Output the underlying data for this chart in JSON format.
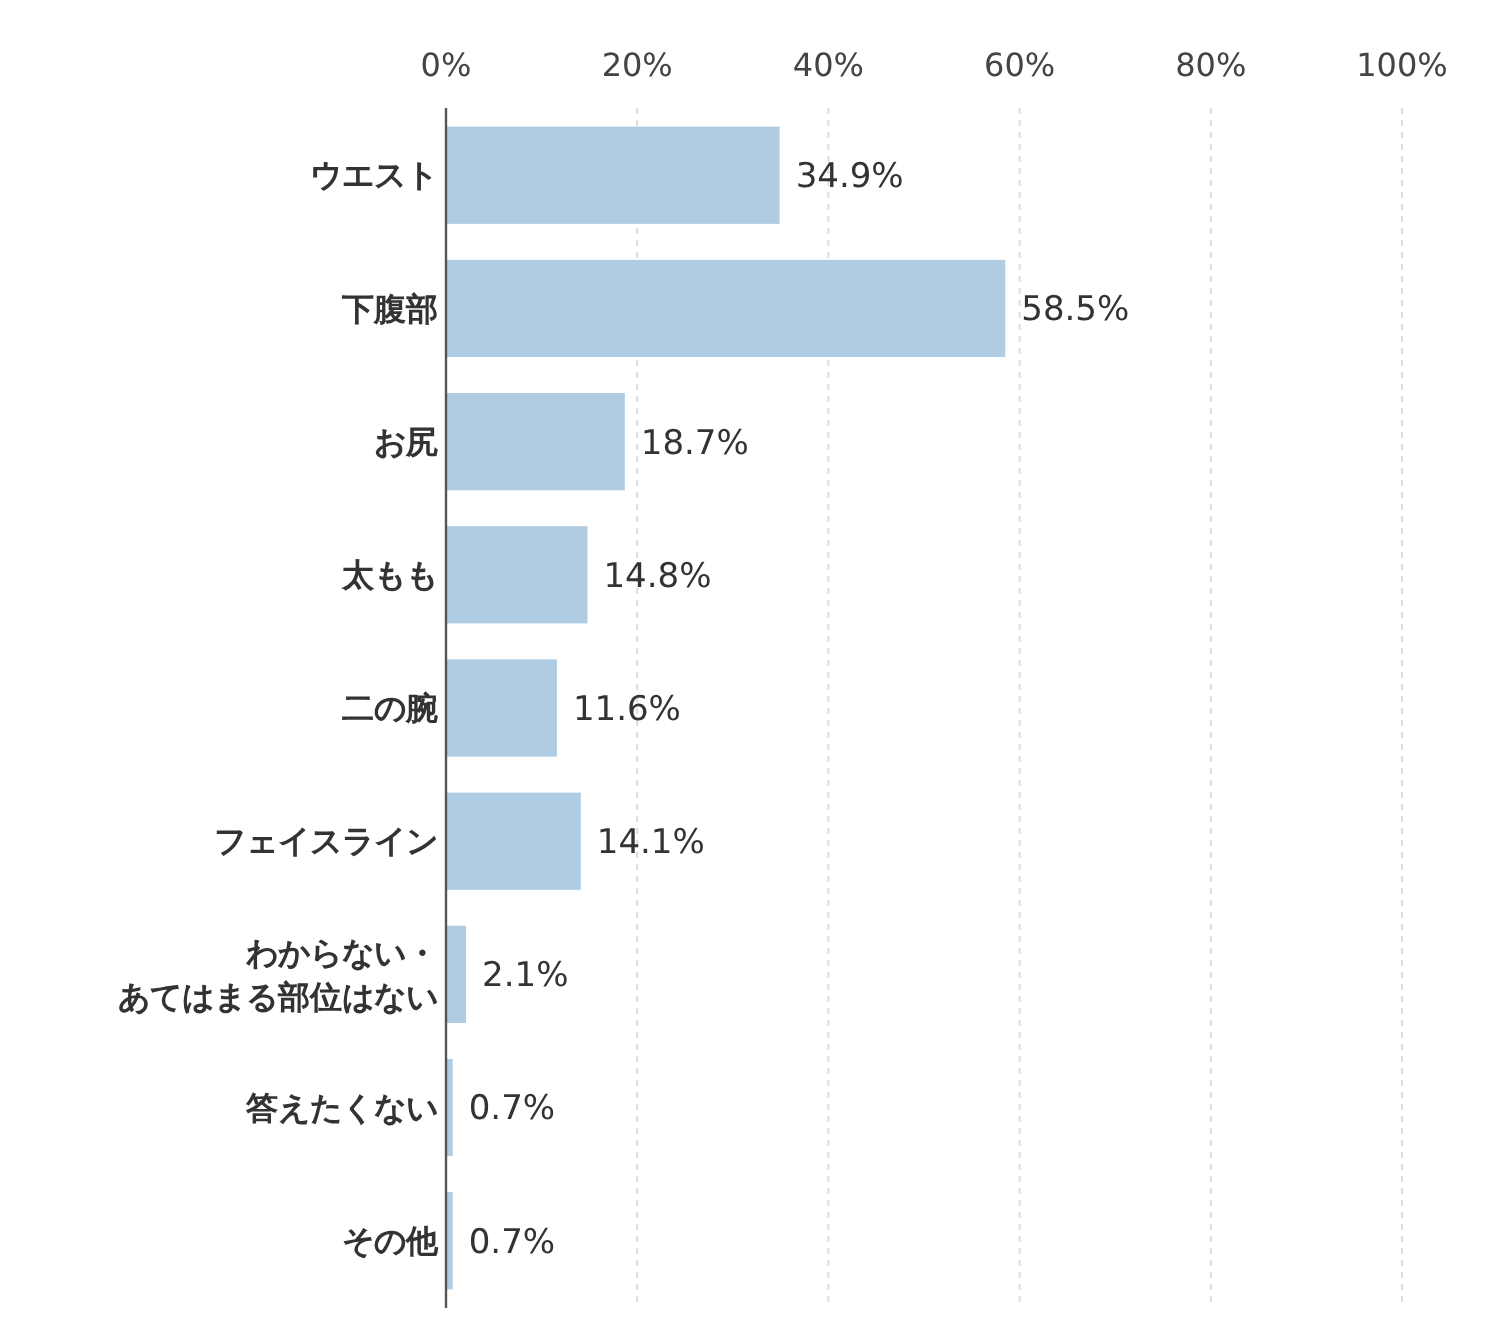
{
  "chart_data": {
    "type": "bar",
    "orientation": "horizontal",
    "categories": [
      "ウエスト",
      "下腹部",
      "お尻",
      "太もも",
      "二の腕",
      "フェイスライン",
      "わからない・あてはまる部位はない",
      "答えたくない",
      "その他"
    ],
    "values": [
      34.9,
      58.5,
      18.7,
      14.8,
      11.6,
      14.1,
      2.1,
      0.7,
      0.7
    ],
    "value_labels": [
      "34.9%",
      "58.5%",
      "18.7%",
      "14.8%",
      "11.6%",
      "14.1%",
      "2.1%",
      "0.7%",
      "0.7%"
    ],
    "color": "#b0cce3",
    "xlim": [
      0,
      100
    ],
    "xticks": [
      {
        "value": 0,
        "label": "0%"
      },
      {
        "value": 20,
        "label": "20%"
      },
      {
        "value": 40,
        "label": "40%"
      },
      {
        "value": 60,
        "label": "60%"
      },
      {
        "value": 80,
        "label": "80%"
      },
      {
        "value": 100,
        "label": "100%"
      }
    ],
    "grid": "x"
  }
}
